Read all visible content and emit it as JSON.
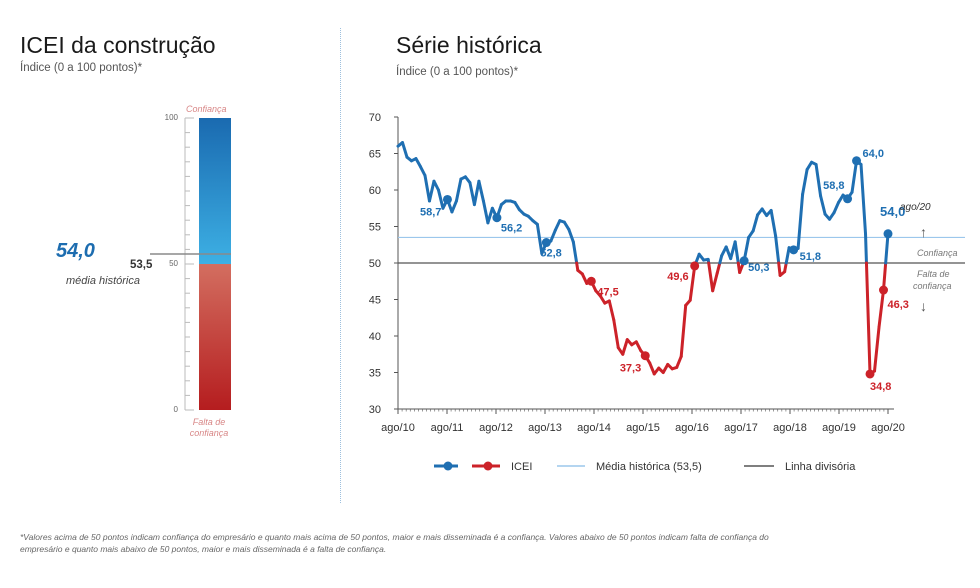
{
  "left_panel": {
    "title": "ICEI da construção",
    "subtitle": "Índice (0 a 100 pontos)*",
    "gauge": {
      "top_label": "Confiança",
      "bottom_label_1": "Falta de",
      "bottom_label_2": "confiança",
      "ticks": [
        "100",
        "50",
        "0"
      ],
      "current_value": "54,0",
      "average_value": "53,5",
      "average_label": "média histórica",
      "colors": {
        "confidence": "#1f74b8",
        "confidence_light": "#3aa7de",
        "no_confidence": "#c0392b",
        "no_confidence_light": "#dd6b5a"
      }
    }
  },
  "right_panel": {
    "title": "Série histórica",
    "subtitle": "Índice (0 a 100 pontos)*"
  },
  "chart_data": {
    "type": "line",
    "title": "Série histórica",
    "ylim": [
      30,
      70
    ],
    "yticks": [
      "70",
      "65",
      "60",
      "55",
      "50",
      "45",
      "40",
      "35",
      "30"
    ],
    "xticks": [
      "ago/10",
      "ago/11",
      "ago/12",
      "ago/13",
      "ago/14",
      "ago/15",
      "ago/16",
      "ago/17",
      "ago/18",
      "ago/19",
      "ago/20"
    ],
    "threshold": 50,
    "average": 53.5,
    "colors": {
      "above": "#1f6fb2",
      "below": "#cc2229",
      "average": "#9cc7ec",
      "divider": "#555555"
    },
    "series": [
      {
        "name": "ICEI",
        "values": [
          66.0,
          66.5,
          64.5,
          64.0,
          64.3,
          63.2,
          62.0,
          58.5,
          61.2,
          60.0,
          57.5,
          58.7,
          57.0,
          58.5,
          61.5,
          61.8,
          61.0,
          58.0,
          61.2,
          58.5,
          55.5,
          57.5,
          56.2,
          58.0,
          58.5,
          58.5,
          58.3,
          57.3,
          56.7,
          56.4,
          55.8,
          55.3,
          51.3,
          52.8,
          53.0,
          54.5,
          55.8,
          55.6,
          54.6,
          52.9,
          49.0,
          48.5,
          47.2,
          47.5,
          46.2,
          45.5,
          44.5,
          44.8,
          42.2,
          38.4,
          37.5,
          39.5,
          38.8,
          39.2,
          38.0,
          37.3,
          36.3,
          34.8,
          35.6,
          35.0,
          36.1,
          35.5,
          35.7,
          37.2,
          44.2,
          44.9,
          49.6,
          51.2,
          50.4,
          50.5,
          46.2,
          48.6,
          51.0,
          52.2,
          50.6,
          52.9,
          48.7,
          50.3,
          53.5,
          54.4,
          56.6,
          57.4,
          56.5,
          57.2,
          53.7,
          48.3,
          48.8,
          52.1,
          51.8,
          52.0,
          59.4,
          62.8,
          63.8,
          63.5,
          59.2,
          56.7,
          56.0,
          56.9,
          58.3,
          59.3,
          58.8,
          59.7,
          64.0,
          63.5,
          54.0,
          34.8,
          35.2,
          41.2,
          46.3,
          54.0
        ],
        "labels": [
          {
            "i": 11,
            "text": "58,7"
          },
          {
            "i": 22,
            "text": "56,2"
          },
          {
            "i": 33,
            "text": "52,8"
          },
          {
            "i": 43,
            "text": "47,5"
          },
          {
            "i": 55,
            "text": "37,3"
          },
          {
            "i": 66,
            "text": "49,6"
          },
          {
            "i": 77,
            "text": "50,3"
          },
          {
            "i": 88,
            "text": "51,8"
          },
          {
            "i": 100,
            "text": "58,8"
          },
          {
            "i": 102,
            "text": "64,0"
          },
          {
            "i": 105,
            "text": "34,8"
          },
          {
            "i": 108,
            "text": "46,3"
          },
          {
            "i": 109,
            "text": "54,0"
          }
        ]
      }
    ],
    "end_label": "ago/20",
    "confianca_label": "Confiança",
    "falta_label_1": "Falta de",
    "falta_label_2": "confiança",
    "legend": {
      "icei": "ICEI",
      "average": "Média histórica (53,5)",
      "divider": "Linha divisória"
    }
  },
  "footnote_1": "*Valores acima de 50 pontos indicam confiança do empresário e quanto mais acima de 50 pontos, maior e mais disseminada é a confiança. Valores abaixo de 50 pontos indicam falta de confiança do",
  "footnote_2": "empresário e quanto mais abaixo de 50 pontos, maior e mais disseminada é a falta de confiança."
}
